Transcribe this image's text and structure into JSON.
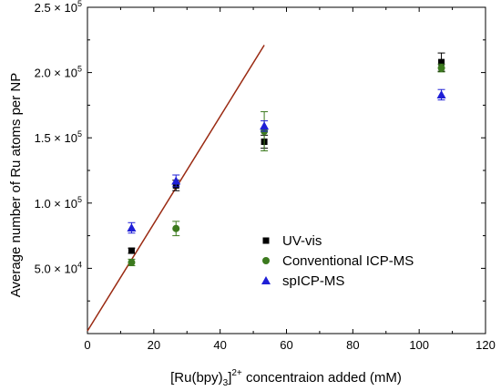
{
  "chart_data": {
    "type": "scatter",
    "xlabel_parts": {
      "base": "[Ru(bpy)",
      "sub": "3",
      "close": "]",
      "sup": "2+",
      "rest": " concentraion added (mM)"
    },
    "ylabel": "Average number of Ru atoms per NP",
    "xlim": [
      0,
      120
    ],
    "ylim": [
      0,
      250000
    ],
    "x_ticks": [
      0,
      20,
      40,
      60,
      80,
      100,
      120
    ],
    "x_tick_labels": [
      "0",
      "20",
      "40",
      "60",
      "80",
      "100",
      "120"
    ],
    "y_ticks": [
      50000,
      100000,
      150000,
      200000,
      250000
    ],
    "y_tick_labels": [
      {
        "mant": "5.0",
        "exp": "4"
      },
      {
        "mant": "1.0",
        "exp": "5"
      },
      {
        "mant": "1.5",
        "exp": "5"
      },
      {
        "mant": "2.0",
        "exp": "5"
      },
      {
        "mant": "2.5",
        "exp": "5"
      }
    ],
    "grid": false,
    "legend_position": "right",
    "series": [
      {
        "name": "UV-vis",
        "marker": "square",
        "color": "#000000",
        "points": [
          {
            "x": 13.3,
            "y": 63500,
            "err": 2000
          },
          {
            "x": 26.7,
            "y": 113500,
            "err": 4000
          },
          {
            "x": 53.3,
            "y": 147000,
            "err": 5000
          },
          {
            "x": 106.7,
            "y": 208000,
            "err": 7000
          }
        ]
      },
      {
        "name": "Conventional ICP-MS",
        "marker": "circle",
        "color": "#3c7a1e",
        "points": [
          {
            "x": 13.3,
            "y": 54500,
            "err": 2500
          },
          {
            "x": 26.7,
            "y": 80500,
            "err": 5500
          },
          {
            "x": 53.3,
            "y": 155000,
            "err": 15000
          },
          {
            "x": 106.7,
            "y": 203500,
            "err": 3000
          }
        ]
      },
      {
        "name": "spICP-MS",
        "marker": "triangle",
        "color": "#1f1fd6",
        "points": [
          {
            "x": 13.3,
            "y": 81000,
            "err": 4000
          },
          {
            "x": 26.7,
            "y": 117000,
            "err": 4500
          },
          {
            "x": 53.3,
            "y": 159000,
            "err": 4000
          },
          {
            "x": 106.7,
            "y": 183000,
            "err": 4000
          }
        ]
      }
    ],
    "fit_line": {
      "color": "#9a2a12",
      "x": [
        0,
        53.3
      ],
      "y": [
        2000,
        221000
      ]
    }
  }
}
